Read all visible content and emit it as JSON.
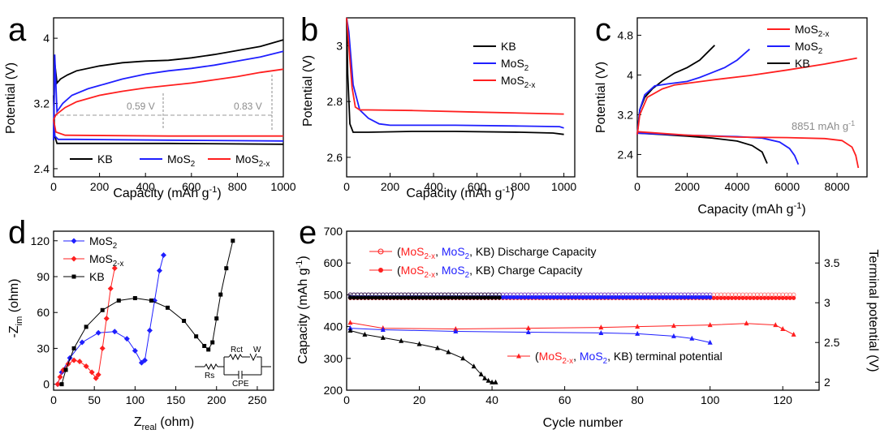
{
  "colors": {
    "kb": "#000000",
    "mos2": "#1f1fff",
    "mos2x": "#ff1f1f",
    "annot": "#8c8c8c"
  },
  "chart_data": [
    {
      "panel": "a",
      "type": "line",
      "xlabel": "Capacity (mAh g",
      "xlabel_sup": "-1",
      "xlabel_end": ")",
      "ylabel": "Potential (V)",
      "xlim": [
        0,
        1000
      ],
      "ylim": [
        2.3,
        4.25
      ],
      "xticks": [
        0,
        200,
        400,
        600,
        800,
        1000
      ],
      "yticks": [
        2.4,
        3.2,
        4.0
      ],
      "legend": [
        {
          "base": "KB",
          "sub": "",
          "series": "KB"
        },
        {
          "base": "MoS",
          "sub": "2",
          "series": "MoS2"
        },
        {
          "base": "MoS",
          "sub": "2-x",
          "series": "MoS2-x"
        }
      ],
      "series": [
        {
          "name": "KB",
          "x": [
            0,
            5,
            15,
            30,
            60,
            100,
            200,
            300,
            400,
            500,
            600,
            700,
            800,
            900,
            1000
          ],
          "y": [
            2.75,
            3.7,
            3.45,
            3.5,
            3.55,
            3.6,
            3.66,
            3.7,
            3.72,
            3.73,
            3.76,
            3.8,
            3.85,
            3.9,
            3.98
          ]
        },
        {
          "name": "KB-discharge",
          "x": [
            0,
            5,
            15,
            50,
            100,
            500,
            1000
          ],
          "y": [
            3.3,
            2.8,
            2.71,
            2.71,
            2.71,
            2.71,
            2.7
          ]
        },
        {
          "name": "MoS2",
          "x": [
            0,
            5,
            15,
            40,
            80,
            150,
            200,
            300,
            400,
            500,
            600,
            700,
            800,
            900,
            1000
          ],
          "y": [
            2.75,
            3.8,
            3.1,
            3.2,
            3.3,
            3.38,
            3.42,
            3.5,
            3.56,
            3.6,
            3.63,
            3.67,
            3.72,
            3.77,
            3.84
          ]
        },
        {
          "name": "MoS2-discharge",
          "x": [
            0,
            5,
            20,
            100,
            500,
            1000
          ],
          "y": [
            3.0,
            2.8,
            2.76,
            2.76,
            2.75,
            2.74
          ]
        },
        {
          "name": "MoS2-x",
          "x": [
            0,
            10,
            50,
            100,
            200,
            300,
            400,
            500,
            600,
            700,
            800,
            900,
            1000
          ],
          "y": [
            3.0,
            3.06,
            3.15,
            3.22,
            3.3,
            3.35,
            3.39,
            3.42,
            3.45,
            3.49,
            3.53,
            3.58,
            3.62
          ]
        },
        {
          "name": "MoS2-x-discharge",
          "x": [
            0,
            10,
            50,
            500,
            1000
          ],
          "y": [
            3.0,
            2.85,
            2.81,
            2.8,
            2.8
          ]
        }
      ],
      "annotations": [
        "0.59 V",
        "0.83 V"
      ]
    },
    {
      "panel": "b",
      "type": "line",
      "xlabel": "Capacity (mAh g",
      "xlabel_sup": "-1",
      "xlabel_end": ")",
      "ylabel": "Potential (V)",
      "xlim": [
        0,
        1050
      ],
      "ylim": [
        2.53,
        3.1
      ],
      "xticks": [
        0,
        200,
        400,
        600,
        800,
        1000
      ],
      "yticks": [
        2.6,
        2.8,
        3.0
      ],
      "legend": [
        {
          "base": "KB",
          "sub": "",
          "series": "KB"
        },
        {
          "base": "MoS",
          "sub": "2",
          "series": "MoS2"
        },
        {
          "base": "MoS",
          "sub": "2-x",
          "series": "MoS2-x"
        }
      ],
      "series": [
        {
          "name": "KB",
          "x": [
            0,
            5,
            15,
            30,
            60,
            100,
            300,
            500,
            800,
            950,
            1000
          ],
          "y": [
            3.1,
            2.9,
            2.72,
            2.69,
            2.69,
            2.69,
            2.693,
            2.693,
            2.69,
            2.687,
            2.682
          ]
        },
        {
          "name": "MoS2",
          "x": [
            0,
            10,
            30,
            60,
            100,
            150,
            200,
            500,
            800,
            980,
            1000
          ],
          "y": [
            3.1,
            3.05,
            2.86,
            2.77,
            2.74,
            2.72,
            2.715,
            2.715,
            2.712,
            2.71,
            2.705
          ]
        },
        {
          "name": "MoS2-x",
          "x": [
            0,
            10,
            25,
            40,
            60,
            100,
            300,
            600,
            1000
          ],
          "y": [
            3.1,
            3.0,
            2.85,
            2.78,
            2.77,
            2.77,
            2.768,
            2.762,
            2.755
          ]
        }
      ]
    },
    {
      "panel": "c",
      "type": "line",
      "xlabel": "Capacity (mAh g",
      "xlabel_sup": "-1",
      "xlabel_end": ")",
      "ylabel": "Potential (V)",
      "xlim": [
        0,
        9200
      ],
      "ylim": [
        1.95,
        5.15
      ],
      "xticks": [
        0,
        2000,
        4000,
        6000,
        8000
      ],
      "yticks": [
        2.4,
        3.2,
        4.0,
        4.8
      ],
      "legend": [
        {
          "base": "MoS",
          "sub": "2-x",
          "series": "MoS2-x"
        },
        {
          "base": "MoS",
          "sub": "2",
          "series": "MoS2"
        },
        {
          "base": "KB",
          "sub": "",
          "series": "KB"
        }
      ],
      "series": [
        {
          "name": "KB",
          "x": [
            0,
            100,
            300,
            600,
            1000,
            1500,
            2000,
            2500,
            3000,
            3100
          ],
          "y": [
            2.8,
            3.3,
            3.55,
            3.72,
            3.88,
            4.04,
            4.15,
            4.3,
            4.55,
            4.6
          ]
        },
        {
          "name": "KB-discharge",
          "x": [
            0,
            1000,
            2000,
            3000,
            4000,
            4600,
            5000,
            5200
          ],
          "y": [
            2.83,
            2.8,
            2.77,
            2.73,
            2.67,
            2.58,
            2.45,
            2.22
          ]
        },
        {
          "name": "MoS2",
          "x": [
            0,
            100,
            300,
            700,
            1200,
            2000,
            2500,
            3000,
            3500,
            4000,
            4500
          ],
          "y": [
            2.8,
            3.3,
            3.6,
            3.78,
            3.82,
            3.87,
            3.95,
            4.05,
            4.15,
            4.3,
            4.52
          ]
        },
        {
          "name": "MoS2-discharge",
          "x": [
            0,
            2000,
            4000,
            5000,
            5700,
            6100,
            6300,
            6450
          ],
          "y": [
            2.83,
            2.79,
            2.76,
            2.73,
            2.65,
            2.52,
            2.38,
            2.2
          ]
        },
        {
          "name": "MoS2-x",
          "x": [
            0,
            100,
            400,
            1000,
            1500,
            3000,
            4500,
            6000,
            7500,
            8800
          ],
          "y": [
            2.8,
            3.2,
            3.55,
            3.72,
            3.8,
            3.9,
            3.99,
            4.1,
            4.22,
            4.34
          ]
        },
        {
          "name": "MoS2-x-discharge",
          "x": [
            0,
            2000,
            4000,
            6000,
            7500,
            8200,
            8600,
            8750,
            8851
          ],
          "y": [
            2.86,
            2.79,
            2.75,
            2.74,
            2.72,
            2.68,
            2.55,
            2.38,
            2.13
          ]
        }
      ],
      "annotation": "8851 mAh g",
      "annotation_sup": "-1"
    },
    {
      "panel": "d",
      "type": "scatter",
      "xlabel_base": "Z",
      "xlabel_sub": "real",
      "xlabel_end": " (ohm)",
      "ylabel_base": "-Z",
      "ylabel_sub": "im",
      "ylabel_end": " (ohm)",
      "xlim": [
        0,
        270
      ],
      "ylim": [
        -5,
        128
      ],
      "xticks": [
        0,
        50,
        100,
        150,
        200,
        250
      ],
      "yticks": [
        0,
        30,
        60,
        90,
        120
      ],
      "legend": [
        {
          "base": "MoS",
          "sub": "2",
          "series": "MoS2"
        },
        {
          "base": "MoS",
          "sub": "2-x",
          "series": "MoS2-x"
        },
        {
          "base": "KB",
          "sub": "",
          "series": "KB"
        }
      ],
      "circuit_labels": [
        "Rs",
        "Rct",
        "W",
        "CPE"
      ],
      "series": [
        {
          "name": "MoS2",
          "x": [
            5,
            10,
            20,
            35,
            55,
            75,
            90,
            100,
            108,
            112,
            118,
            124,
            130,
            135
          ],
          "y": [
            0,
            10,
            22,
            35,
            43,
            44,
            38,
            28,
            18,
            20,
            45,
            70,
            95,
            108
          ]
        },
        {
          "name": "MoS2-x",
          "x": [
            5,
            8,
            12,
            18,
            25,
            32,
            40,
            47,
            52,
            55,
            60,
            65,
            70,
            75
          ],
          "y": [
            0,
            6,
            12,
            17,
            20,
            19,
            15,
            10,
            5,
            8,
            30,
            55,
            80,
            97
          ]
        },
        {
          "name": "KB",
          "x": [
            10,
            15,
            25,
            40,
            60,
            80,
            100,
            120,
            140,
            160,
            175,
            185,
            190,
            195,
            200,
            205,
            212,
            220
          ],
          "y": [
            0,
            12,
            30,
            48,
            62,
            70,
            72,
            70,
            64,
            53,
            40,
            32,
            29,
            35,
            55,
            75,
            97,
            120
          ]
        }
      ]
    },
    {
      "panel": "e",
      "type": "scatter",
      "xlabel": "Cycle number",
      "ylabel": "Capacity (mAh g",
      "ylabel_sup": "-1",
      "ylabel_end": ")",
      "y2label": "Terminal potential (V)",
      "xlim": [
        0,
        130
      ],
      "ylim": [
        200,
        700
      ],
      "y2lim": [
        1.9,
        3.9
      ],
      "xticks": [
        0,
        20,
        40,
        60,
        80,
        100,
        120
      ],
      "yticks": [
        200,
        300,
        400,
        500,
        600,
        700
      ],
      "y2ticks": [
        2.0,
        2.5,
        3.0,
        3.5
      ],
      "legend": [
        {
          "open": "(",
          "t1": "MoS",
          "s1": "2-x",
          "t2": "MoS",
          "s2": "2",
          "tail": ", KB) Discharge Capacity"
        },
        {
          "open": "(",
          "t1": "MoS",
          "s1": "2-x",
          "t2": "MoS",
          "s2": "2",
          "tail": ", KB) Charge Capacity"
        },
        {
          "open": "(",
          "t1": "MoS",
          "s1": "2-x",
          "t2": "MoS",
          "s2": "2",
          "tail": ", KB) terminal potential"
        }
      ],
      "series": [
        {
          "name": "MoS2-x discharge capacity",
          "cycles": 123,
          "value": 500
        },
        {
          "name": "MoS2-x charge capacity",
          "cycles": 123,
          "value": 490
        },
        {
          "name": "MoS2 discharge capacity",
          "cycles": 100,
          "value": 500
        },
        {
          "name": "MoS2 charge capacity",
          "cycles": 100,
          "value": 492
        },
        {
          "name": "KB discharge capacity",
          "cycles": 42,
          "value": 500
        },
        {
          "name": "KB charge capacity",
          "cycles": 42,
          "value": 491
        },
        {
          "name": "MoS2-x terminal potential",
          "x": [
            1,
            10,
            30,
            50,
            70,
            80,
            90,
            100,
            110,
            118,
            120,
            123
          ],
          "y": [
            2.75,
            2.68,
            2.67,
            2.68,
            2.69,
            2.7,
            2.71,
            2.72,
            2.74,
            2.72,
            2.67,
            2.6
          ]
        },
        {
          "name": "MoS2 terminal potential",
          "x": [
            1,
            10,
            30,
            50,
            70,
            80,
            90,
            95,
            100
          ],
          "y": [
            2.68,
            2.66,
            2.64,
            2.63,
            2.62,
            2.61,
            2.58,
            2.55,
            2.5
          ]
        },
        {
          "name": "KB terminal potential",
          "x": [
            1,
            5,
            10,
            15,
            20,
            25,
            28,
            32,
            35,
            37,
            38,
            39,
            40,
            41
          ],
          "y": [
            2.65,
            2.6,
            2.56,
            2.52,
            2.48,
            2.43,
            2.38,
            2.3,
            2.2,
            2.1,
            2.05,
            2.02,
            2.0,
            2.0
          ]
        }
      ]
    }
  ],
  "panel_labels": [
    "a",
    "b",
    "c",
    "d",
    "e"
  ]
}
